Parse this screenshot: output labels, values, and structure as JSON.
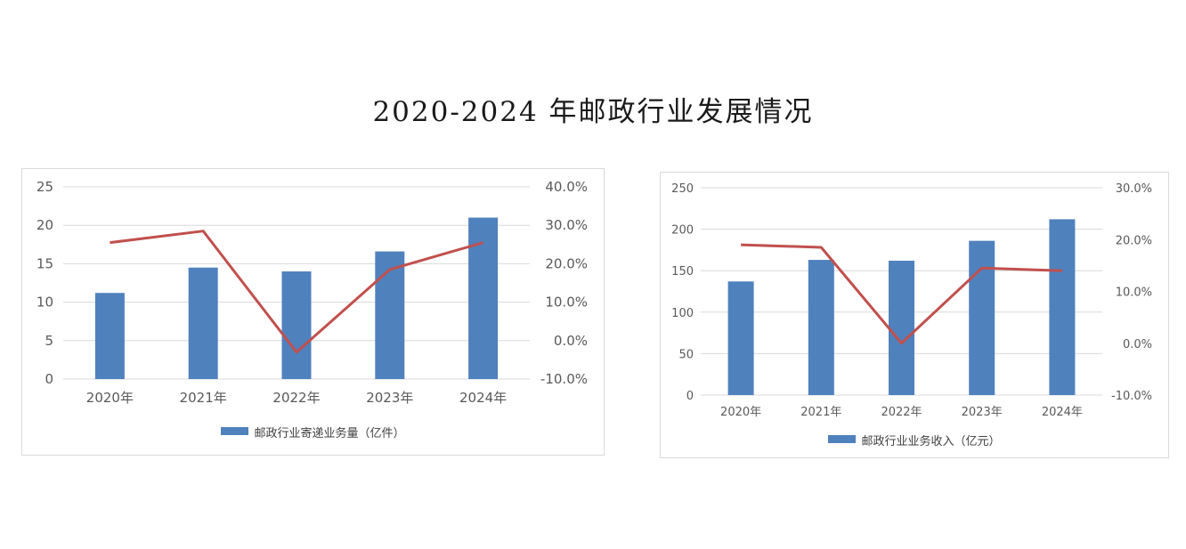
{
  "page": {
    "title": "2020-2024 年邮政行业发展情况"
  },
  "colors": {
    "bar": "#4f81bd",
    "line": "#c0504d",
    "grid": "#d9d9d9"
  },
  "chart_data": [
    {
      "type": "bar",
      "categories": [
        "2020年",
        "2021年",
        "2022年",
        "2023年",
        "2024年"
      ],
      "series": [
        {
          "name": "邮政行业寄递业务量（亿件）",
          "axis": "left",
          "values": [
            11.2,
            14.5,
            14.0,
            16.6,
            21.0
          ]
        },
        {
          "axis": "right",
          "chart": "line",
          "values": [
            25.5,
            28.5,
            -3.0,
            18.5,
            25.5
          ]
        }
      ],
      "y_left": {
        "ticks": [
          "25",
          "20",
          "15",
          "10",
          "5",
          "0"
        ],
        "range": [
          0,
          25
        ]
      },
      "y_right": {
        "ticks": [
          "40.0%",
          "30.0%",
          "20.0%",
          "10.0%",
          "0.0%",
          "-10.0%"
        ],
        "range": [
          -10,
          40
        ]
      },
      "grid": true,
      "legend": "bottom"
    },
    {
      "type": "bar",
      "categories": [
        "2020年",
        "2021年",
        "2022年",
        "2023年",
        "2024年"
      ],
      "series": [
        {
          "name": "邮政行业业务收入（亿元）",
          "axis": "left",
          "values": [
            137,
            163,
            162,
            186,
            212
          ]
        },
        {
          "axis": "right",
          "chart": "line",
          "values": [
            19.0,
            18.5,
            0.0,
            14.5,
            14.0
          ]
        }
      ],
      "y_left": {
        "ticks": [
          "250",
          "200",
          "150",
          "100",
          "50",
          "0"
        ],
        "range": [
          0,
          250
        ]
      },
      "y_right": {
        "ticks": [
          "30.0%",
          "20.0%",
          "10.0%",
          "0.0%",
          "-10.0%"
        ],
        "range": [
          -10,
          30
        ]
      },
      "grid": true,
      "legend": "bottom"
    }
  ]
}
